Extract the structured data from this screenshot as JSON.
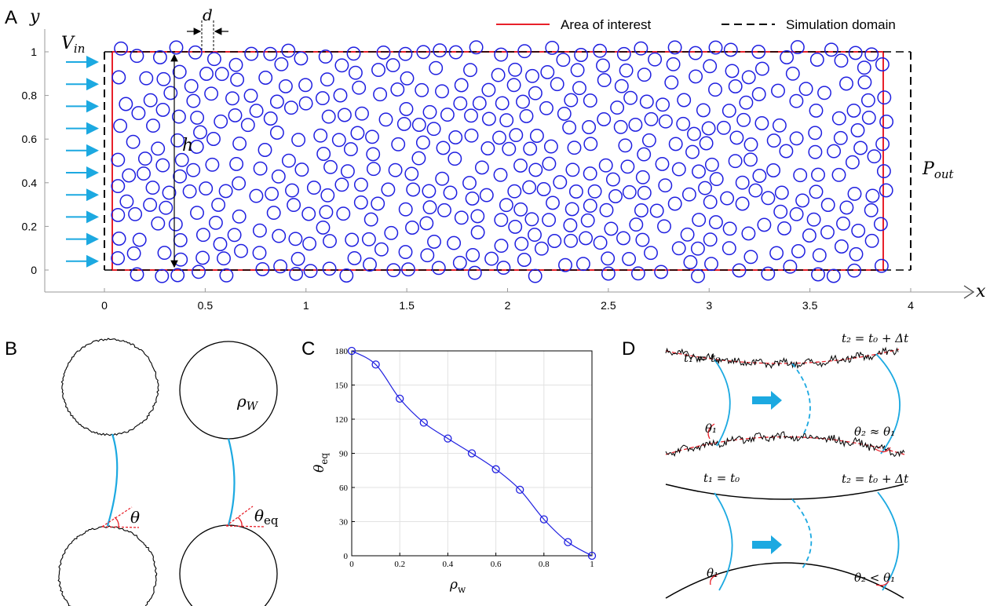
{
  "panels": {
    "A": "A",
    "B": "B",
    "C": "C",
    "D": "D"
  },
  "panel_a": {
    "axis_x": "x",
    "axis_y": "y",
    "legend_area": "Area of interest",
    "legend_sim": "Simulation domain",
    "v_in": "V",
    "v_in_sub": "in",
    "p_out": "P",
    "p_out_sub": "out",
    "h": "h",
    "d": "d",
    "x_ticks": [
      "0",
      "0.5",
      "1",
      "1.5",
      "2",
      "2.5",
      "3",
      "3.5",
      "4"
    ],
    "y_ticks": [
      "0",
      "0.2",
      "0.4",
      "0.6",
      "0.8",
      "1"
    ],
    "colors": {
      "area": "#e8212a",
      "grain": "#1f1fe0",
      "arrow": "#1ca9e1"
    }
  },
  "panel_b": {
    "theta": "θ",
    "theta_eq": "θ",
    "theta_eq_sub": "eq",
    "rho": "ρ",
    "rho_sub": "W"
  },
  "panel_d": {
    "t1_top": "t₁ = t₀",
    "t2_top": "t₂ = t₀ + Δt",
    "th1_top": "θ₁",
    "th2_top": "θ₂ ≈ θ₁",
    "t1_bot": "t₁ = t₀",
    "t2_bot": "t₂ = t₀ + Δt",
    "th1_bot": "θ₁",
    "th2_bot": "θ₂ < θ₁"
  },
  "chart_data": {
    "type": "line",
    "xlabel": "ρ_w",
    "ylabel": "θ_eq",
    "xlim": [
      0,
      1
    ],
    "ylim": [
      0,
      180
    ],
    "grid": true,
    "x_ticks": [
      "0",
      "0.2",
      "0.4",
      "0.6",
      "0.8",
      "1"
    ],
    "y_ticks": [
      "0",
      "30",
      "60",
      "90",
      "120",
      "150",
      "180"
    ],
    "series": [
      {
        "x": [
          0,
          0.1,
          0.2,
          0.3,
          0.4,
          0.5,
          0.6,
          0.7,
          0.8,
          0.9,
          1.0
        ],
        "values": [
          180,
          168,
          138,
          117,
          103,
          90,
          76,
          58,
          32,
          12,
          0
        ]
      }
    ],
    "color": "#1f1fe0"
  }
}
